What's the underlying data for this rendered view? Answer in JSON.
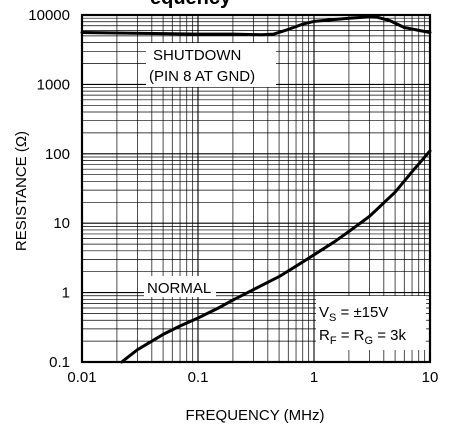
{
  "title_fragment": "equency",
  "chart_data": {
    "type": "line",
    "xlabel": "FREQUENCY (MHz)",
    "ylabel": "RESISTANCE (Ω)",
    "x_scale": "log",
    "y_scale": "log",
    "xlim": [
      0.01,
      10
    ],
    "ylim": [
      0.1,
      10000
    ],
    "grid": true,
    "x_ticks": [
      "0.01",
      "0.1",
      "1",
      "10"
    ],
    "y_ticks": [
      "0.1",
      "1",
      "10",
      "100",
      "1000",
      "10000"
    ],
    "series": [
      {
        "name": "SHUTDOWN",
        "x": [
          0.01,
          0.02,
          0.05,
          0.1,
          0.2,
          0.35,
          0.45,
          0.6,
          0.8,
          1.0,
          1.5,
          2.0,
          3.0,
          3.5,
          4.5,
          6.0,
          8.0,
          10.0
        ],
        "y": [
          5600,
          5500,
          5400,
          5300,
          5300,
          5200,
          5300,
          6200,
          7400,
          8100,
          8600,
          9000,
          9400,
          9300,
          8300,
          6600,
          6000,
          5600
        ]
      },
      {
        "name": "NORMAL",
        "x": [
          0.022,
          0.03,
          0.05,
          0.07,
          0.1,
          0.15,
          0.2,
          0.3,
          0.5,
          0.7,
          1.0,
          1.5,
          2.0,
          3.0,
          5.0,
          7.0,
          10.0
        ],
        "y": [
          0.1,
          0.15,
          0.25,
          0.33,
          0.43,
          0.6,
          0.78,
          1.1,
          1.7,
          2.4,
          3.5,
          5.4,
          7.6,
          12.5,
          28,
          55,
          110
        ]
      }
    ],
    "annotations": {
      "shutdown_line1": "SHUTDOWN",
      "shutdown_line2": "(PIN 8 AT GND)",
      "normal": "NORMAL",
      "cond_vs_main": "V",
      "cond_vs_sub": "S",
      "cond_vs_rest": " = ±15V",
      "cond_r1": "R",
      "cond_r1_sub": "F",
      "cond_eq": " = R",
      "cond_r2_sub": "G",
      "cond_r_rest": " = 3k"
    }
  }
}
